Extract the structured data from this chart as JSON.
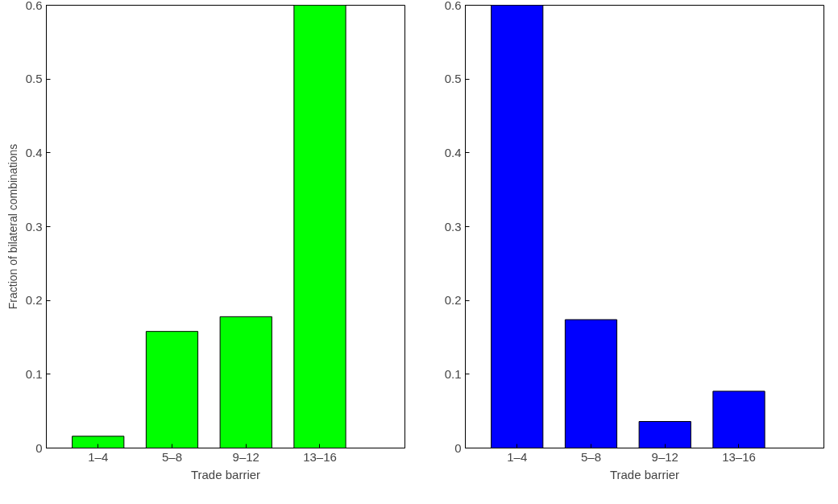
{
  "chart_data": [
    {
      "type": "bar",
      "categories": [
        "1–4",
        "5–8",
        "9–12",
        "13–16"
      ],
      "values": [
        0.016,
        0.158,
        0.178,
        0.6
      ],
      "color": "#00ff00",
      "xlabel": "Trade barrier",
      "ylabel": "Fraction of bilateral combinations",
      "ylim": [
        0,
        0.6
      ],
      "yticks": [
        0,
        0.1,
        0.2,
        0.3,
        0.4,
        0.5,
        0.6
      ]
    },
    {
      "type": "bar",
      "categories": [
        "1–4",
        "5–8",
        "9–12",
        "13–16"
      ],
      "values": [
        0.6,
        0.174,
        0.036,
        0.077
      ],
      "color": "#0000ff",
      "xlabel": "Trade barrier",
      "ylim": [
        0,
        0.6
      ],
      "yticks": [
        0,
        0.1,
        0.2,
        0.3,
        0.4,
        0.5,
        0.6
      ]
    }
  ]
}
